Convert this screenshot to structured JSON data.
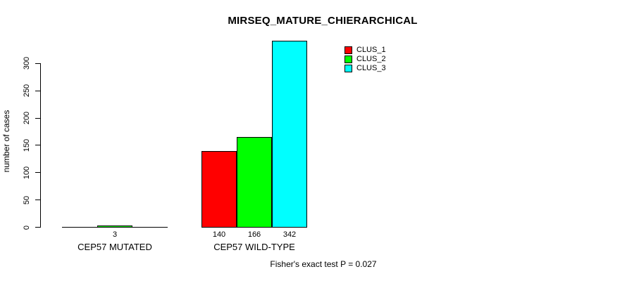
{
  "title": "MIRSEQ_MATURE_CHIERARCHICAL",
  "y_axis_label": "number of cases",
  "footer": "Fisher's exact test P = 0.027",
  "legend": {
    "items": [
      {
        "label": "CLUS_1",
        "color": "#ff0000"
      },
      {
        "label": "CLUS_2",
        "color": "#00ff00"
      },
      {
        "label": "CLUS_3",
        "color": "#00ffff"
      }
    ]
  },
  "chart_data": {
    "type": "bar",
    "title": "MIRSEQ_MATURE_CHIERARCHICAL",
    "xlabel": "",
    "ylabel": "number of cases",
    "categories": [
      "CEP57 MUTATED",
      "CEP57 WILD-TYPE"
    ],
    "series": [
      {
        "name": "CLUS_1",
        "color": "#ff0000",
        "values": [
          0,
          140
        ]
      },
      {
        "name": "CLUS_2",
        "color": "#00ff00",
        "values": [
          3,
          166
        ]
      },
      {
        "name": "CLUS_3",
        "color": "#00ffff",
        "values": [
          0,
          342
        ]
      }
    ],
    "bar_value_labels": [
      [
        "",
        "3",
        ""
      ],
      [
        "140",
        "166",
        "342"
      ]
    ],
    "yticks": [
      0,
      50,
      100,
      150,
      200,
      250,
      300
    ],
    "ylim": [
      0,
      342
    ],
    "grid": false,
    "legend_position": "top-right",
    "annotation": "Fisher's exact test P = 0.027"
  }
}
